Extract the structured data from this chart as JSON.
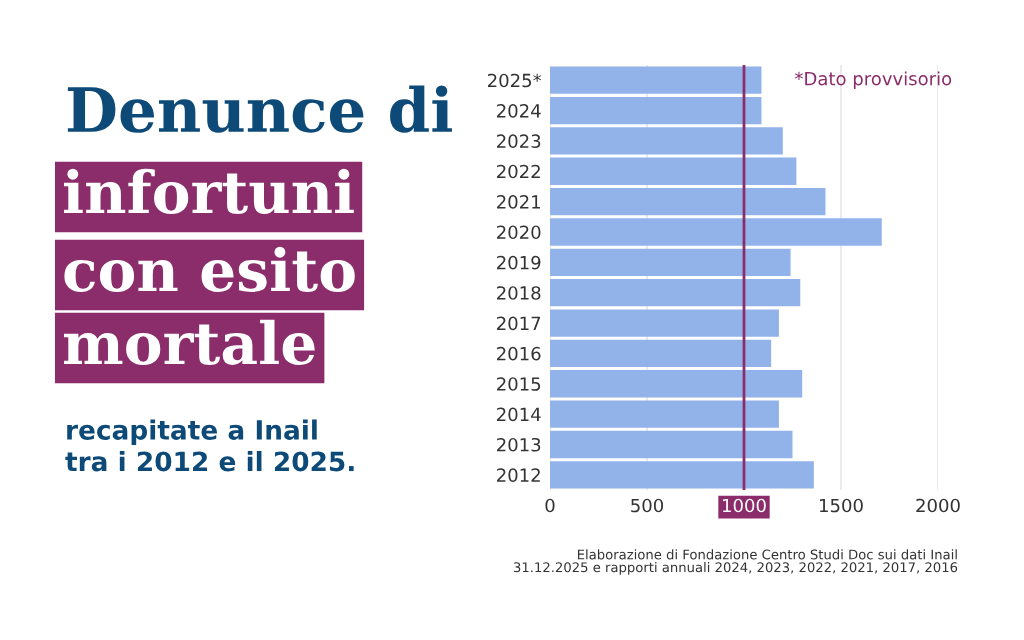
{
  "chart_data": {
    "type": "bar",
    "orientation": "horizontal",
    "title": "Denunce di\ninfortuni\ncon esito\nmortale",
    "subtitle": "recapitate a Inail\ntra i 2012 e il 2025.",
    "categories": [
      "2025*",
      "2024",
      "2023",
      "2022",
      "2021",
      "2020",
      "2019",
      "2018",
      "2017",
      "2016",
      "2015",
      "2014",
      "2013",
      "2012"
    ],
    "values": [
      1090,
      1090,
      1200,
      1270,
      1420,
      1710,
      1240,
      1290,
      1180,
      1140,
      1300,
      1180,
      1250,
      1360
    ],
    "color": "#92b2ea",
    "xlim": [
      0,
      2000
    ],
    "xticks": [
      0,
      500,
      1000,
      1500,
      2000
    ],
    "grid": "x",
    "ref_lines": [
      {
        "axis": "x",
        "value": 1000,
        "color": "#8b2d6b"
      }
    ],
    "annotations": [
      "*Dato provvisorio",
      "Elaborazione di Fondazione Centro Studi Doc sui dati Inail\n31.12.2025 e rapporti annuali 2024, 2023, 2022, 2021, 2017, 2016"
    ]
  }
}
